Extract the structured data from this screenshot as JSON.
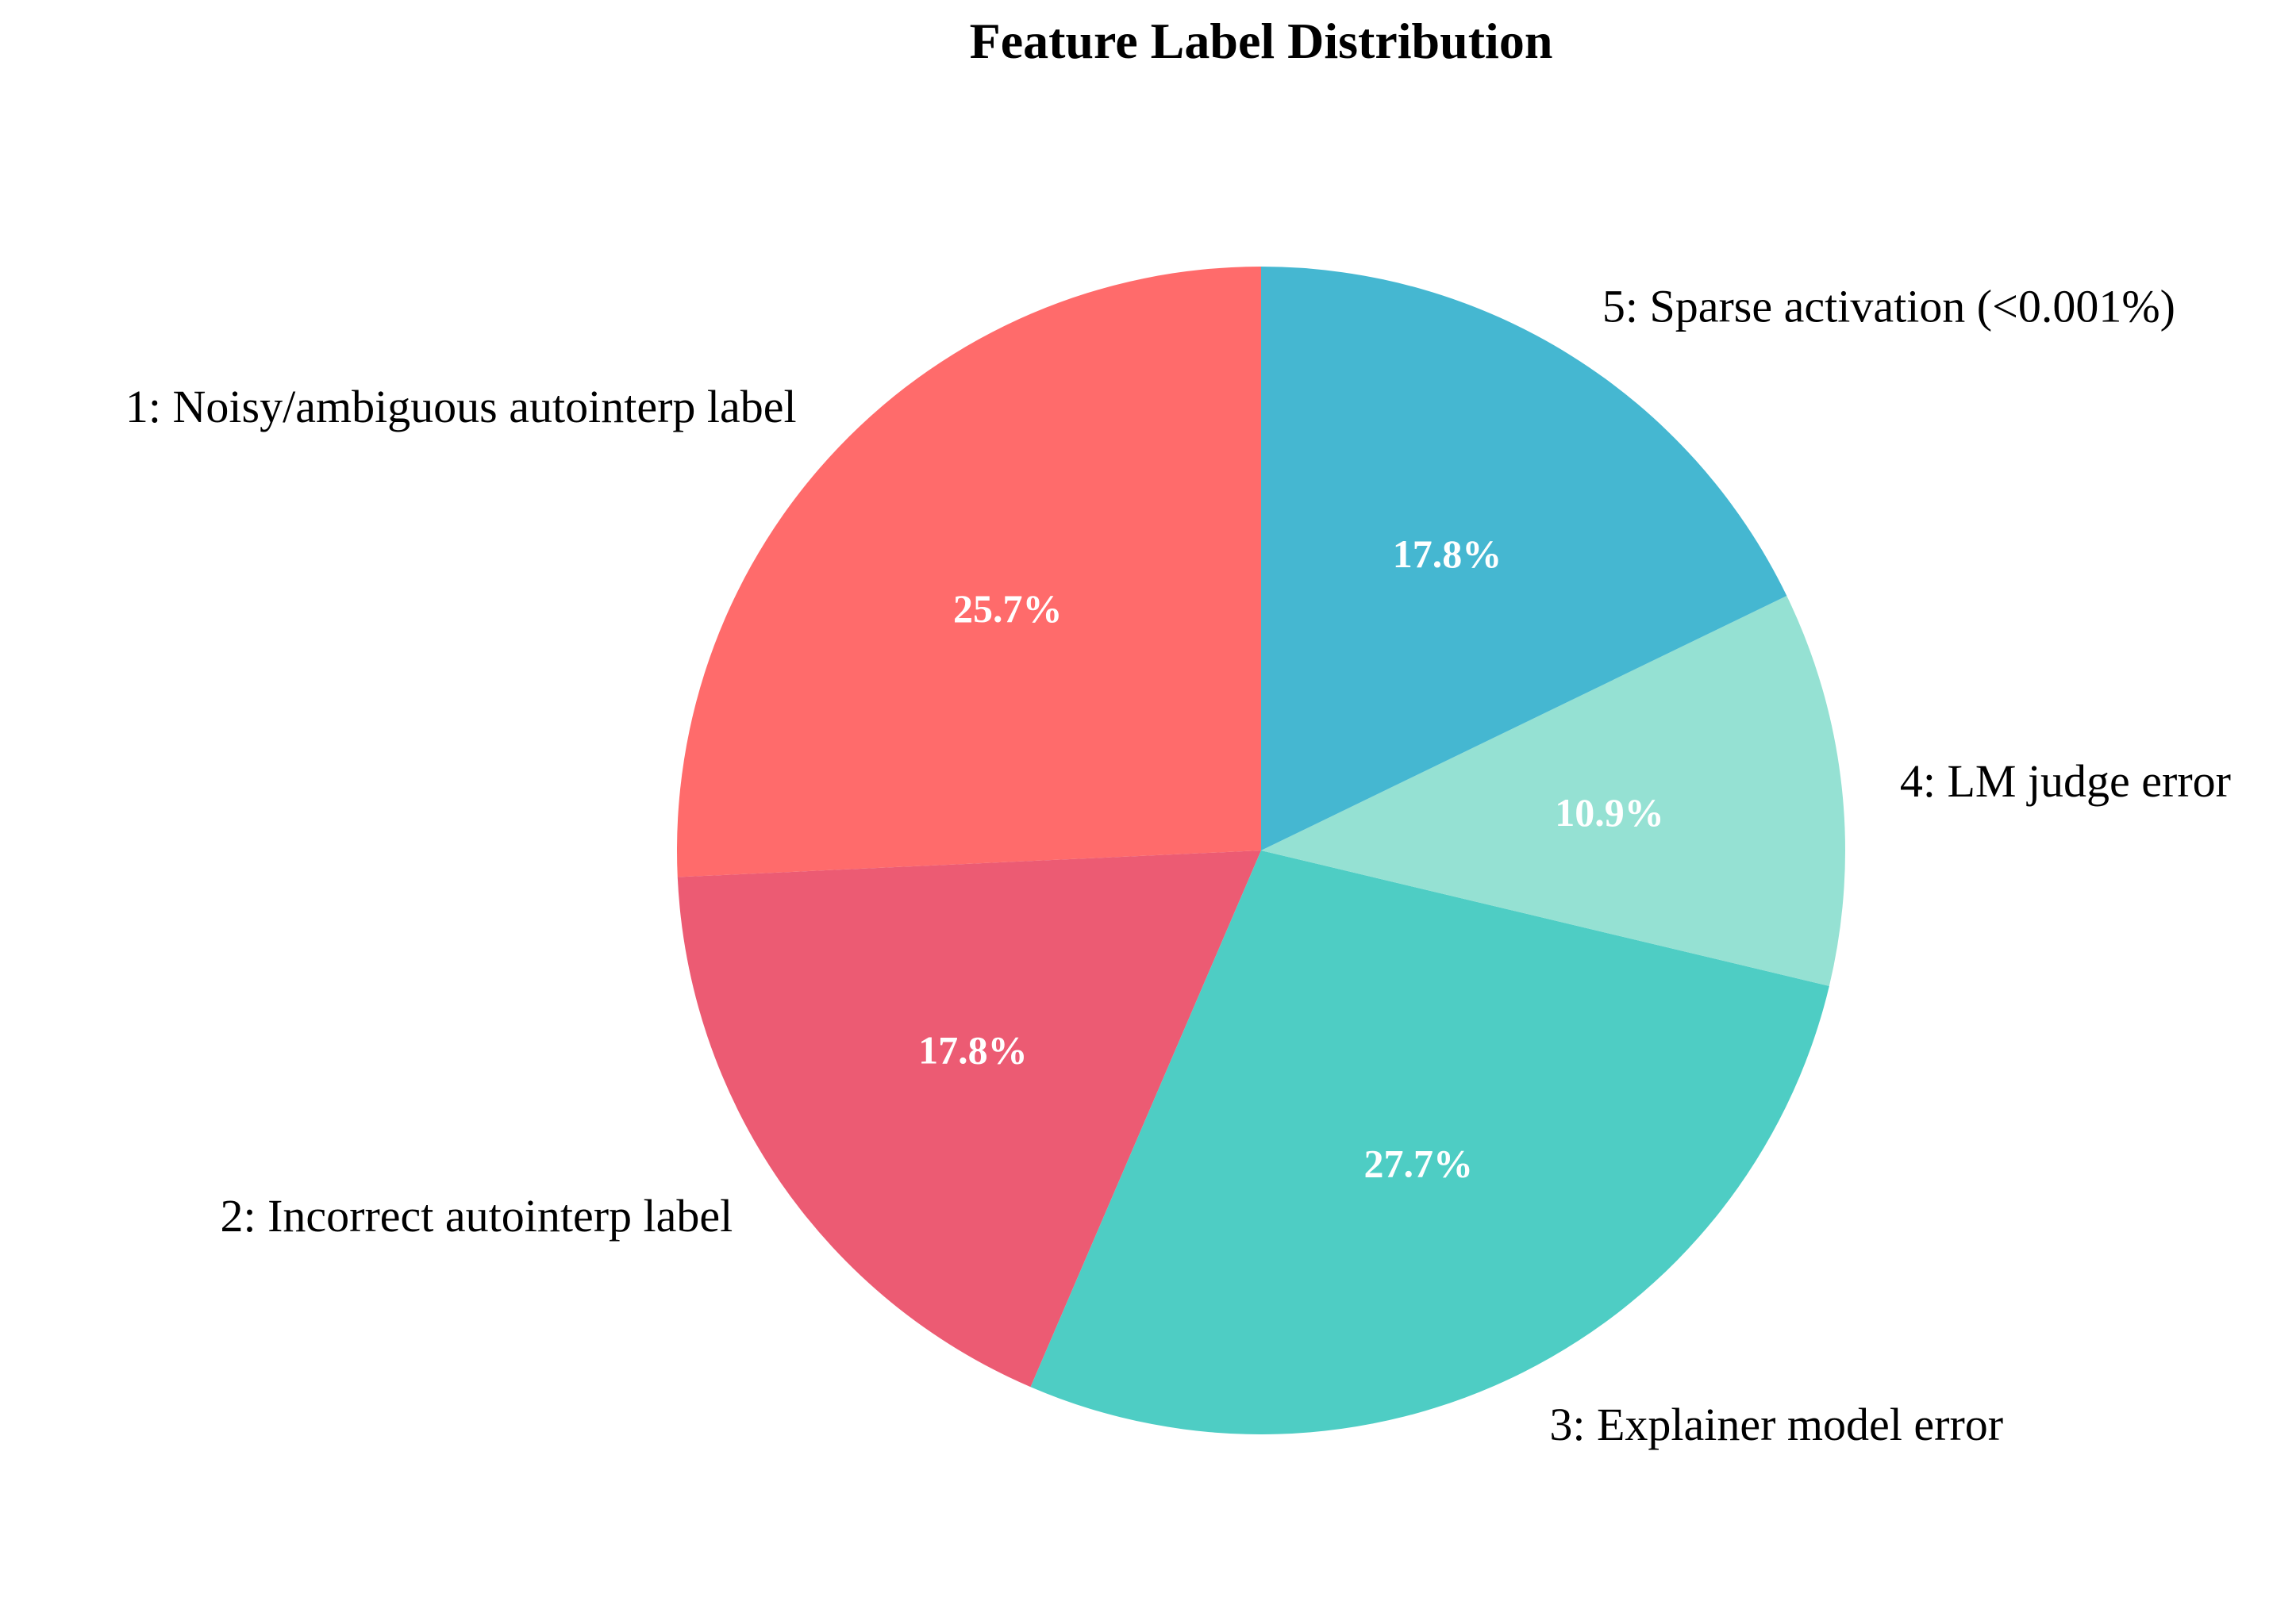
{
  "chart_data": {
    "type": "pie",
    "title": "Feature Label Distribution",
    "start_angle_deg": 90,
    "direction": "counterclockwise",
    "slices": [
      {
        "label": "1: Noisy/ambiguous autointerp label",
        "value": 25.7,
        "pct_label": "25.7%",
        "color": "#FF6B6B"
      },
      {
        "label": "2: Incorrect autointerp label",
        "value": 17.8,
        "pct_label": "17.8%",
        "color": "#EC5B73"
      },
      {
        "label": "3: Explainer model error",
        "value": 27.7,
        "pct_label": "27.7%",
        "color": "#4ECDC4"
      },
      {
        "label": "4: LM judge error",
        "value": 10.9,
        "pct_label": "10.9%",
        "color": "#95E1D3"
      },
      {
        "label": "5: Sparse activation (<0.001%)",
        "value": 17.8,
        "pct_label": "17.8%",
        "color": "#45B7D1"
      }
    ]
  }
}
